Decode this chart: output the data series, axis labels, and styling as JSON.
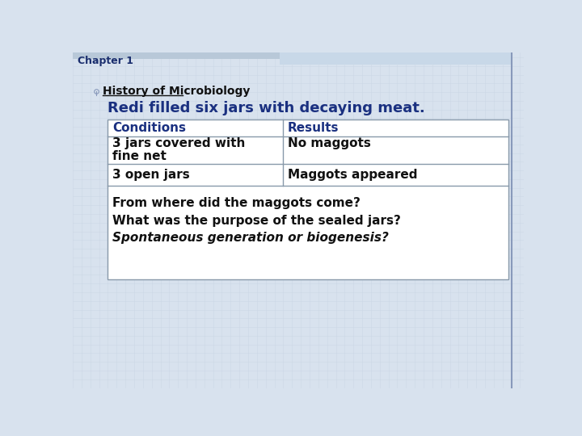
{
  "chapter_label": "Chapter 1",
  "subtitle": "History of Microbiology",
  "heading": "Redi filled six jars with decaying meat.",
  "table_headers": [
    "Conditions",
    "Results"
  ],
  "table_row1_col1_line1": "3 jars covered with",
  "table_row1_col1_line2": "fine net",
  "table_row1_col2": "No maggots",
  "table_row2_col1": "3 open jars",
  "table_row2_col2": "Maggots appeared",
  "footer_line1": "From where did the maggots come?",
  "footer_line2": "What was the purpose of the sealed jars?",
  "footer_line3": "Spontaneous generation or biogenesis?",
  "bg_color": "#d8e2ee",
  "top_banner_left_color": "#b8c8d8",
  "top_banner_right_color": "#c8d8e8",
  "chapter_color": "#1a2e6e",
  "subtitle_color": "#111111",
  "heading_color": "#1a3080",
  "header_text_color": "#1a3080",
  "body_text_color": "#111111",
  "footer_text_color": "#111111",
  "table_border_color": "#8899aa",
  "table_bg_color": "#ffffff",
  "right_border_color": "#8899bb",
  "grid_color": "#c5d2e0"
}
